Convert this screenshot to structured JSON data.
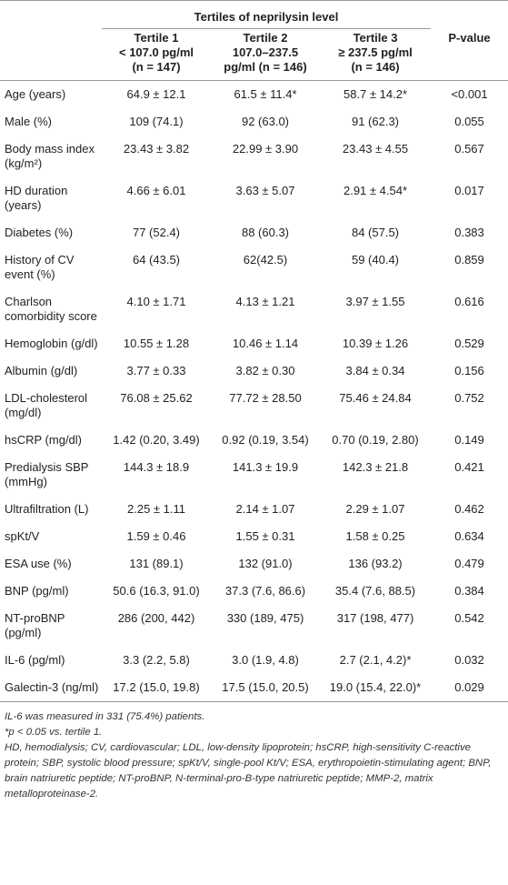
{
  "table": {
    "spanner": "Tertiles of neprilysin level",
    "columns": [
      [
        "Tertile 1",
        "< 107.0 pg/ml",
        "(n = 147)"
      ],
      [
        "Tertile 2",
        "107.0–237.5",
        "pg/ml (n = 146)"
      ],
      [
        "Tertile 3",
        "≥ 237.5 pg/ml",
        "(n = 146)"
      ],
      [
        "P-value"
      ]
    ],
    "rows": [
      [
        "Age (years)",
        "64.9 ± 12.1",
        "61.5 ± 11.4*",
        "58.7 ± 14.2*",
        "<0.001"
      ],
      [
        "Male (%)",
        "109 (74.1)",
        "92 (63.0)",
        "91 (62.3)",
        "0.055"
      ],
      [
        "Body mass index (kg/m²)",
        "23.43 ± 3.82",
        "22.99 ± 3.90",
        "23.43 ± 4.55",
        "0.567"
      ],
      [
        "HD duration (years)",
        "4.66 ± 6.01",
        "3.63 ± 5.07",
        "2.91 ± 4.54*",
        "0.017"
      ],
      [
        "Diabetes (%)",
        "77 (52.4)",
        "88 (60.3)",
        "84 (57.5)",
        "0.383"
      ],
      [
        "History of CV event (%)",
        "64 (43.5)",
        "62(42.5)",
        "59 (40.4)",
        "0.859"
      ],
      [
        "Charlson comorbidity score",
        "4.10 ± 1.71",
        "4.13 ± 1.21",
        "3.97 ± 1.55",
        "0.616"
      ],
      [
        "Hemoglobin (g/dl)",
        "10.55 ± 1.28",
        "10.46 ± 1.14",
        "10.39 ± 1.26",
        "0.529"
      ],
      [
        "Albumin (g/dl)",
        "3.77 ± 0.33",
        "3.82 ± 0.30",
        "3.84 ± 0.34",
        "0.156"
      ],
      [
        "LDL-cholesterol (mg/dl)",
        "76.08 ± 25.62",
        "77.72 ± 28.50",
        "75.46 ± 24.84",
        "0.752"
      ],
      [
        "hsCRP (mg/dl)",
        "1.42 (0.20, 3.49)",
        "0.92 (0.19, 3.54)",
        "0.70 (0.19, 2.80)",
        "0.149"
      ],
      [
        "Predialysis SBP (mmHg)",
        "144.3 ± 18.9",
        "141.3 ± 19.9",
        "142.3 ± 21.8",
        "0.421"
      ],
      [
        "Ultrafiltration (L)",
        "2.25 ± 1.11",
        "2.14 ± 1.07",
        "2.29 ± 1.07",
        "0.462"
      ],
      [
        "spKt/V",
        "1.59 ± 0.46",
        "1.55 ± 0.31",
        "1.58 ± 0.25",
        "0.634"
      ],
      [
        "ESA use (%)",
        "131 (89.1)",
        "132 (91.0)",
        "136 (93.2)",
        "0.479"
      ],
      [
        "BNP (pg/ml)",
        "50.6 (16.3, 91.0)",
        "37.3 (7.6, 86.6)",
        "35.4 (7.6, 88.5)",
        "0.384"
      ],
      [
        "NT-proBNP (pg/ml)",
        "286 (200, 442)",
        "330 (189, 475)",
        "317 (198, 477)",
        "0.542"
      ],
      [
        "IL-6 (pg/ml)",
        "3.3 (2.2, 5.8)",
        "3.0 (1.9, 4.8)",
        "2.7 (2.1, 4.2)*",
        "0.032"
      ],
      [
        "Galectin-3 (ng/ml)",
        "17.2 (15.0, 19.8)",
        "17.5 (15.0, 20.5)",
        "19.0 (15.4, 22.0)*",
        "0.029"
      ]
    ],
    "footnotes": [
      "IL-6 was measured in 331 (75.4%) patients.",
      "*p < 0.05 vs. tertile 1.",
      "HD, hemodialysis; CV, cardiovascular; LDL, low-density lipoprotein; hsCRP, high-sensitivity C-reactive protein; SBP, systolic blood pressure; spKt/V, single-pool Kt/V; ESA, erythropoietin-stimulating agent; BNP, brain natriuretic peptide; NT-proBNP, N-terminal-pro-B-type natriuretic peptide; MMP-2, matrix metalloproteinase-2."
    ]
  }
}
